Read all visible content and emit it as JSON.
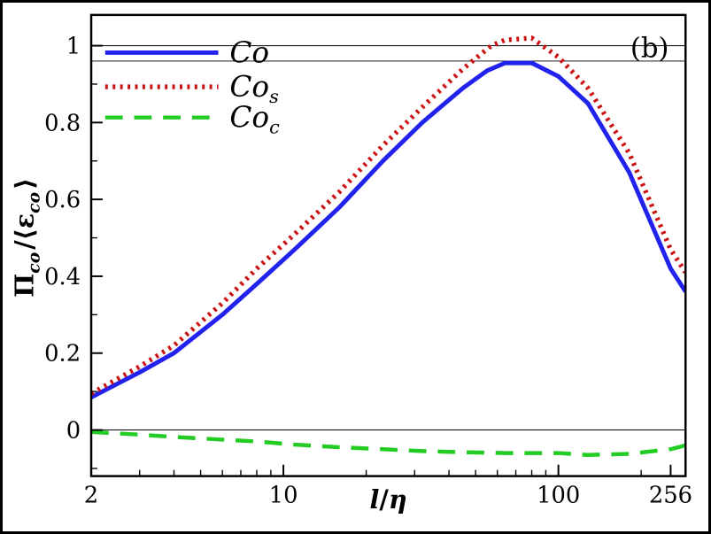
{
  "figure": {
    "panel_label": "(b)",
    "background": "#ffffff",
    "frame_color": "#000000"
  },
  "chart_data": {
    "type": "line",
    "title": "",
    "x_scale": "log",
    "xlim": [
      2,
      290
    ],
    "ylim": [
      -0.12,
      1.08
    ],
    "xlabel_parts": [
      {
        "t": "l",
        "italic": true
      },
      {
        "t": "/",
        "italic": false
      },
      {
        "t": "η",
        "italic": true
      }
    ],
    "ylabel_parts": [
      {
        "t": "Π",
        "sub": false
      },
      {
        "t": "co",
        "sub": true
      },
      {
        "t": "/⟨ε",
        "sub": false
      },
      {
        "t": "co",
        "sub": true
      },
      {
        "t": "⟩",
        "sub": false
      }
    ],
    "x_ticks_major": [
      2,
      10,
      100,
      256
    ],
    "x_tick_labels": [
      "2",
      "10",
      "100",
      "256"
    ],
    "x_ticks_minor": [
      3,
      4,
      5,
      6,
      7,
      8,
      9,
      20,
      30,
      40,
      50,
      60,
      70,
      80,
      90,
      200
    ],
    "y_ticks_major": [
      0,
      0.2,
      0.4,
      0.6,
      0.8,
      1
    ],
    "y_tick_labels": [
      "0",
      "0.2",
      "0.4",
      "0.6",
      "0.8",
      "1"
    ],
    "y_ticks_minor": [
      -0.1,
      0.1,
      0.3,
      0.5,
      0.7,
      0.9
    ],
    "reference_lines": [
      1.0,
      0.96,
      0.0
    ],
    "grid": "off",
    "legend_position": "top-left",
    "series": [
      {
        "name": "Co",
        "label_main": "Co",
        "label_sub": "",
        "color": "#2222ee",
        "style": "solid",
        "width": 5,
        "points": [
          [
            2,
            0.085
          ],
          [
            3,
            0.15
          ],
          [
            4,
            0.2
          ],
          [
            6,
            0.3
          ],
          [
            8,
            0.38
          ],
          [
            11,
            0.47
          ],
          [
            16,
            0.58
          ],
          [
            23,
            0.7
          ],
          [
            32,
            0.8
          ],
          [
            45,
            0.89
          ],
          [
            55,
            0.935
          ],
          [
            64,
            0.955
          ],
          [
            80,
            0.955
          ],
          [
            100,
            0.92
          ],
          [
            128,
            0.85
          ],
          [
            181,
            0.67
          ],
          [
            256,
            0.42
          ],
          [
            290,
            0.36
          ]
        ]
      },
      {
        "name": "Co_s",
        "label_main": "Co",
        "label_sub": "s",
        "color": "#cc1111",
        "style": "dotted",
        "width": 5.5,
        "points": [
          [
            2,
            0.095
          ],
          [
            3,
            0.165
          ],
          [
            4,
            0.22
          ],
          [
            6,
            0.33
          ],
          [
            8,
            0.42
          ],
          [
            11,
            0.51
          ],
          [
            16,
            0.62
          ],
          [
            23,
            0.74
          ],
          [
            32,
            0.84
          ],
          [
            45,
            0.94
          ],
          [
            57,
            1.0
          ],
          [
            64,
            1.015
          ],
          [
            80,
            1.02
          ],
          [
            100,
            0.97
          ],
          [
            128,
            0.89
          ],
          [
            181,
            0.72
          ],
          [
            256,
            0.47
          ],
          [
            290,
            0.41
          ]
        ]
      },
      {
        "name": "Co_c",
        "label_main": "Co",
        "label_sub": "c",
        "color": "#22cc22",
        "style": "dashed",
        "width": 4.5,
        "points": [
          [
            2,
            -0.005
          ],
          [
            3,
            -0.012
          ],
          [
            4,
            -0.018
          ],
          [
            6,
            -0.025
          ],
          [
            8,
            -0.03
          ],
          [
            11,
            -0.038
          ],
          [
            16,
            -0.045
          ],
          [
            23,
            -0.05
          ],
          [
            32,
            -0.055
          ],
          [
            45,
            -0.058
          ],
          [
            64,
            -0.06
          ],
          [
            100,
            -0.06
          ],
          [
            128,
            -0.065
          ],
          [
            181,
            -0.062
          ],
          [
            256,
            -0.05
          ],
          [
            290,
            -0.04
          ]
        ]
      }
    ]
  }
}
